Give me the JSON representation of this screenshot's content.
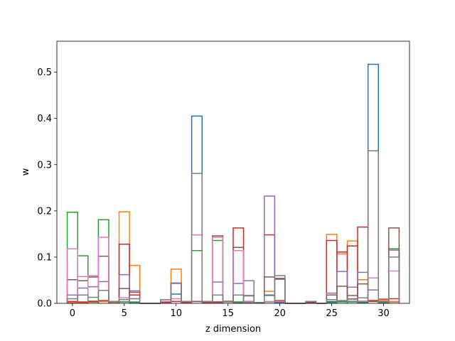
{
  "chart_data": {
    "type": "step",
    "title": "",
    "xlabel": "z dimension",
    "ylabel": "w",
    "xlim": [
      -1.5,
      32.5
    ],
    "ylim": [
      0,
      0.567
    ],
    "xticks": [
      0,
      5,
      10,
      15,
      20,
      25,
      30
    ],
    "yticks": [
      0.0,
      0.1,
      0.2,
      0.3,
      0.4,
      0.5
    ],
    "x": [
      0,
      1,
      2,
      3,
      4,
      5,
      6,
      7,
      8,
      9,
      10,
      11,
      12,
      13,
      14,
      15,
      16,
      17,
      18,
      19,
      20,
      21,
      22,
      23,
      24,
      25,
      26,
      27,
      28,
      29,
      30,
      31
    ],
    "series": [
      {
        "color": "#1f77b4",
        "values": [
          0.001,
          0.001,
          0.003,
          0.004,
          0.002,
          0.003,
          0.002,
          0,
          0,
          0.003,
          0.02,
          0.002,
          0.405,
          0.003,
          0.002,
          0.003,
          0.001,
          0.002,
          0.001,
          0.018,
          0.002,
          0,
          0,
          0.001,
          0,
          0.004,
          0.005,
          0.003,
          0.002,
          0.517,
          0.002,
          0.003
        ]
      },
      {
        "color": "#ff7f0e",
        "values": [
          0.002,
          0.002,
          0.005,
          0.004,
          0.002,
          0.198,
          0.082,
          0,
          0,
          0.004,
          0.074,
          0.004,
          0.004,
          0.004,
          0.003,
          0.005,
          0.003,
          0.004,
          0.002,
          0.026,
          0.004,
          0,
          0,
          0.002,
          0,
          0.149,
          0.107,
          0.135,
          0.051,
          0.004,
          0.006,
          0.004
        ]
      },
      {
        "color": "#2ca02c",
        "values": [
          0.197,
          0.103,
          0.004,
          0.181,
          0.003,
          0.003,
          0.003,
          0,
          0,
          0.002,
          0.004,
          0.002,
          0.114,
          0.002,
          0.136,
          0.004,
          0.003,
          0.004,
          0.002,
          0.003,
          0.004,
          0,
          0,
          0.002,
          0,
          0.002,
          0.003,
          0.004,
          0.003,
          0.006,
          0.003,
          0.118
        ]
      },
      {
        "color": "#d62728",
        "values": [
          0.004,
          0.003,
          0.003,
          0.006,
          0.004,
          0.128,
          0.018,
          0,
          0,
          0.002,
          0.004,
          0.002,
          0.004,
          0.002,
          0.003,
          0.004,
          0.163,
          0.003,
          0.002,
          0.148,
          0.006,
          0,
          0,
          0.002,
          0,
          0.136,
          0.111,
          0.124,
          0.165,
          0.006,
          0.009,
          0.01
        ]
      },
      {
        "color": "#9467bd",
        "values": [
          0.018,
          0.033,
          0.036,
          0.047,
          0.004,
          0.062,
          0.027,
          0,
          0,
          0.004,
          0.043,
          0.004,
          0.004,
          0.004,
          0.046,
          0.004,
          0.043,
          0.049,
          0.002,
          0.232,
          0.052,
          0,
          0,
          0.004,
          0,
          0.022,
          0.069,
          0.035,
          0.067,
          0.029,
          0.004,
          0.115
        ]
      },
      {
        "color": "#8c564b",
        "values": [
          0.051,
          0.049,
          0.057,
          0.102,
          0.004,
          0.032,
          0.024,
          0,
          0,
          0.004,
          0.044,
          0.004,
          0.004,
          0.004,
          0.146,
          0.004,
          0.121,
          0.017,
          0.002,
          0.057,
          0.054,
          0,
          0,
          0.004,
          0,
          0.018,
          0.037,
          0.017,
          0.042,
          0.004,
          0.004,
          0.163
        ]
      },
      {
        "color": "#e377c2",
        "values": [
          0.118,
          0.058,
          0.06,
          0.143,
          0.004,
          0.012,
          0.01,
          0,
          0,
          0.004,
          0.01,
          0.004,
          0.148,
          0.004,
          0.143,
          0.004,
          0.114,
          0.003,
          0.002,
          0.004,
          0.004,
          0,
          0,
          0.004,
          0,
          0.008,
          0.006,
          0.008,
          0.005,
          0.055,
          0.004,
          0.07
        ]
      },
      {
        "color": "#7f7f7f",
        "values": [
          0.01,
          0.018,
          0.013,
          0.028,
          0.004,
          0.008,
          0.01,
          0,
          0,
          0.008,
          0.044,
          0.004,
          0.281,
          0.004,
          0.018,
          0.004,
          0.018,
          0.016,
          0.002,
          0.017,
          0.06,
          0,
          0,
          0.004,
          0,
          0.008,
          0.006,
          0.01,
          0.012,
          0.33,
          0.004,
          0.1
        ]
      }
    ]
  }
}
